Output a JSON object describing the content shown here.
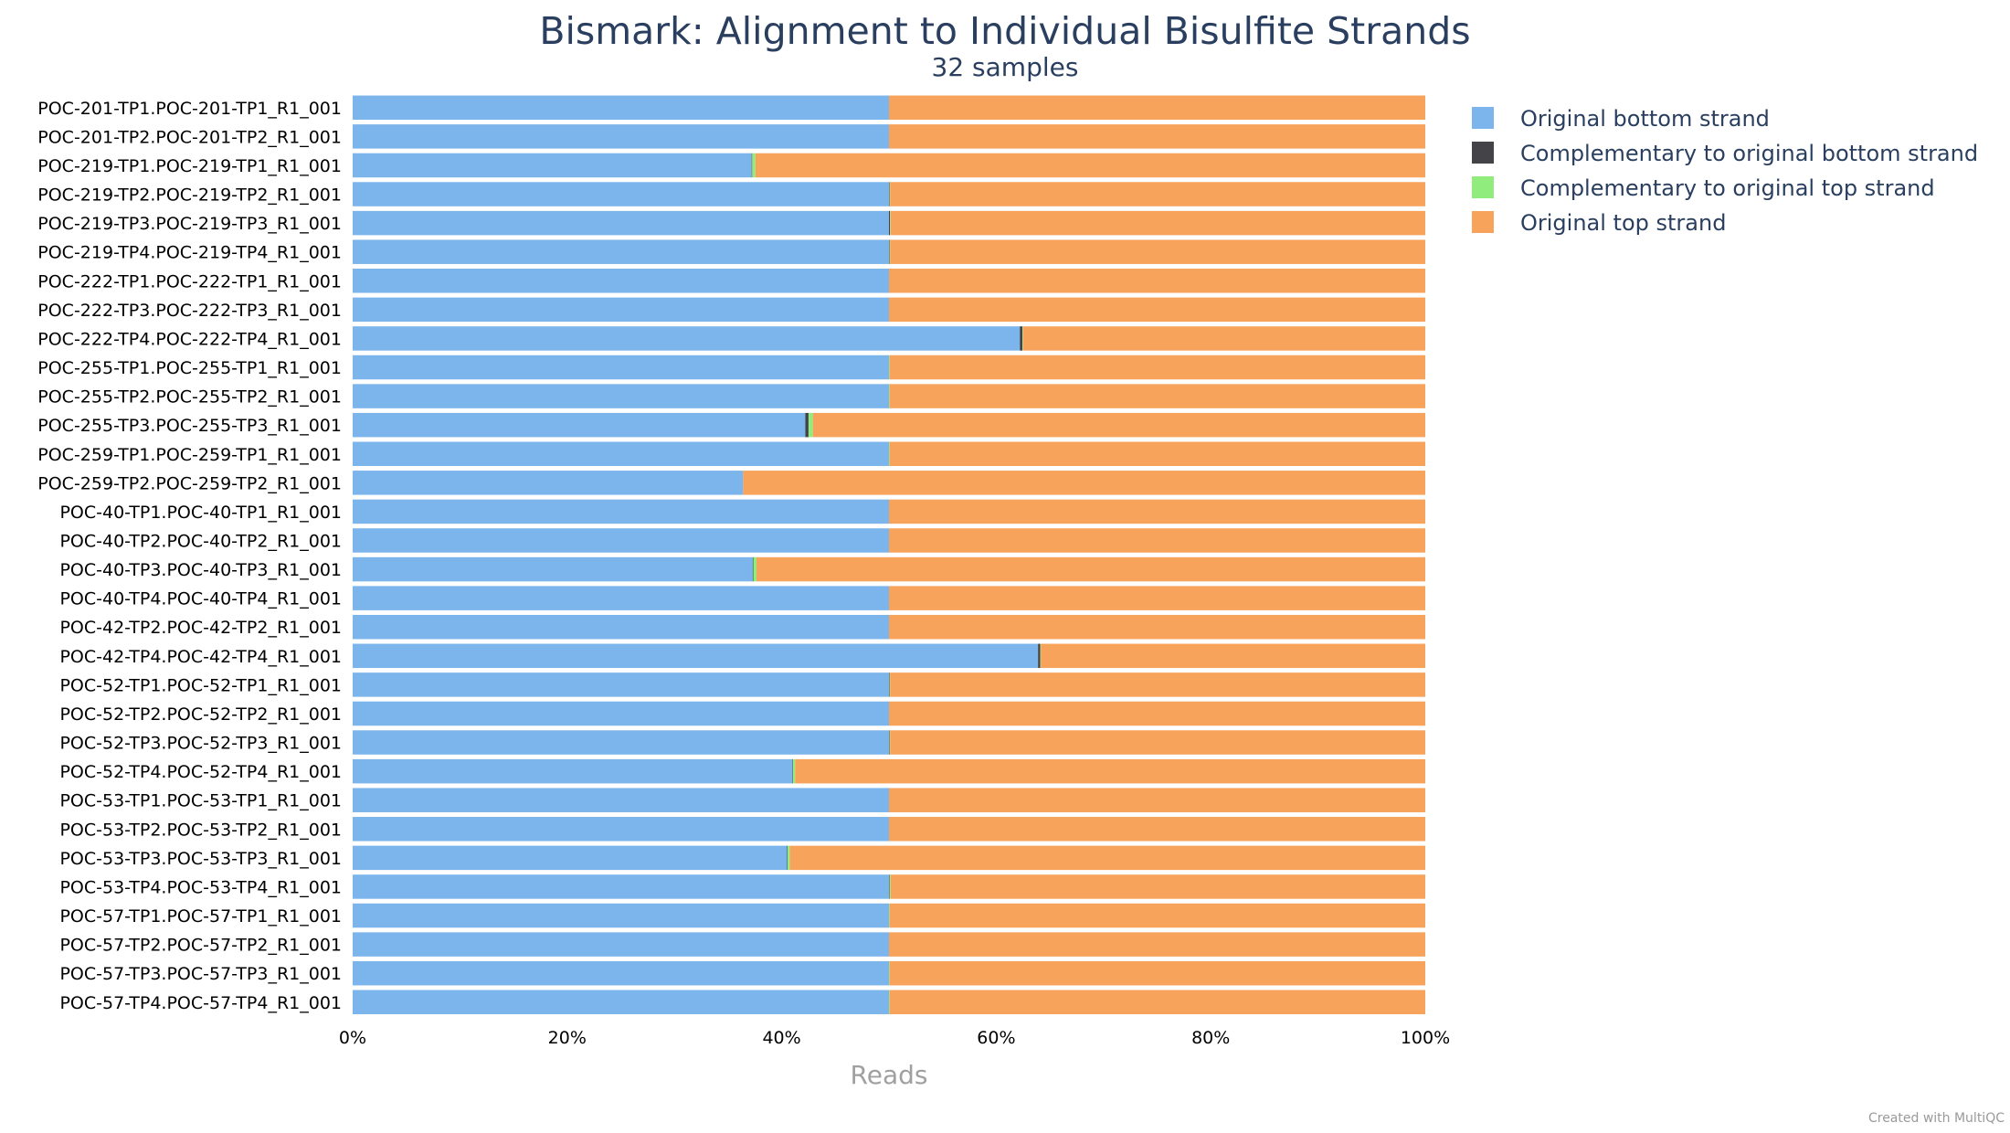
{
  "chart_data": {
    "type": "bar",
    "orientation": "horizontal",
    "stacked": "percent",
    "title": "Bismark: Alignment to Individual Bisulfite Strands",
    "subtitle": "32 samples",
    "xlabel": "Reads",
    "xlim": [
      0,
      100
    ],
    "x_ticks": [
      "0%",
      "20%",
      "40%",
      "60%",
      "80%",
      "100%"
    ],
    "legend_position": "right",
    "categories": [
      "POC-201-TP1.POC-201-TP1_R1_001",
      "POC-201-TP2.POC-201-TP2_R1_001",
      "POC-219-TP1.POC-219-TP1_R1_001",
      "POC-219-TP2.POC-219-TP2_R1_001",
      "POC-219-TP3.POC-219-TP3_R1_001",
      "POC-219-TP4.POC-219-TP4_R1_001",
      "POC-222-TP1.POC-222-TP1_R1_001",
      "POC-222-TP3.POC-222-TP3_R1_001",
      "POC-222-TP4.POC-222-TP4_R1_001",
      "POC-255-TP1.POC-255-TP1_R1_001",
      "POC-255-TP2.POC-255-TP2_R1_001",
      "POC-255-TP3.POC-255-TP3_R1_001",
      "POC-259-TP1.POC-259-TP1_R1_001",
      "POC-259-TP2.POC-259-TP2_R1_001",
      "POC-40-TP1.POC-40-TP1_R1_001",
      "POC-40-TP2.POC-40-TP2_R1_001",
      "POC-40-TP3.POC-40-TP3_R1_001",
      "POC-40-TP4.POC-40-TP4_R1_001",
      "POC-42-TP2.POC-42-TP2_R1_001",
      "POC-42-TP4.POC-42-TP4_R1_001",
      "POC-52-TP1.POC-52-TP1_R1_001",
      "POC-52-TP2.POC-52-TP2_R1_001",
      "POC-52-TP3.POC-52-TP3_R1_001",
      "POC-52-TP4.POC-52-TP4_R1_001",
      "POC-53-TP1.POC-53-TP1_R1_001",
      "POC-53-TP2.POC-53-TP2_R1_001",
      "POC-53-TP3.POC-53-TP3_R1_001",
      "POC-53-TP4.POC-53-TP4_R1_001",
      "POC-57-TP1.POC-57-TP1_R1_001",
      "POC-57-TP2.POC-57-TP2_R1_001",
      "POC-57-TP3.POC-57-TP3_R1_001",
      "POC-57-TP4.POC-57-TP4_R1_001"
    ],
    "series": [
      {
        "name": "Original bottom strand",
        "color": "#7cb5ec",
        "values": [
          50.0,
          50.0,
          37.2,
          50.0,
          50.0,
          50.0,
          50.0,
          50.0,
          62.2,
          50.0,
          50.0,
          42.2,
          50.0,
          36.4,
          50.0,
          50.0,
          37.3,
          50.0,
          50.0,
          63.9,
          50.0,
          50.0,
          50.0,
          41.0,
          50.0,
          50.0,
          40.5,
          50.0,
          50.0,
          50.0,
          50.0,
          50.0
        ]
      },
      {
        "name": "Complementary to original bottom strand",
        "color": "#434348",
        "values": [
          0.0,
          0.0,
          0.05,
          0.05,
          0.1,
          0.05,
          0.0,
          0.0,
          0.25,
          0.0,
          0.0,
          0.3,
          0.0,
          0.0,
          0.0,
          0.0,
          0.05,
          0.0,
          0.0,
          0.2,
          0.05,
          0.0,
          0.05,
          0.05,
          0.0,
          0.0,
          0.05,
          0.05,
          0.0,
          0.0,
          0.0,
          0.0
        ]
      },
      {
        "name": "Complementary to original top strand",
        "color": "#90ed7d",
        "values": [
          0.0,
          0.0,
          0.3,
          0.05,
          0.05,
          0.05,
          0.0,
          0.0,
          0.05,
          0.05,
          0.05,
          0.4,
          0.05,
          0.0,
          0.0,
          0.0,
          0.3,
          0.0,
          0.0,
          0.05,
          0.05,
          0.0,
          0.05,
          0.2,
          0.0,
          0.0,
          0.2,
          0.1,
          0.05,
          0.0,
          0.05,
          0.05
        ]
      },
      {
        "name": "Original top strand",
        "color": "#f7a35c",
        "values": [
          50.0,
          50.0,
          62.45,
          49.9,
          49.85,
          49.9,
          50.0,
          50.0,
          37.5,
          49.95,
          49.95,
          57.1,
          49.95,
          63.6,
          50.0,
          50.0,
          62.35,
          50.0,
          50.0,
          35.85,
          49.9,
          50.0,
          49.9,
          58.75,
          50.0,
          50.0,
          59.25,
          49.85,
          49.95,
          50.0,
          49.95,
          49.95
        ]
      }
    ]
  },
  "credit": "Created with MultiQC"
}
